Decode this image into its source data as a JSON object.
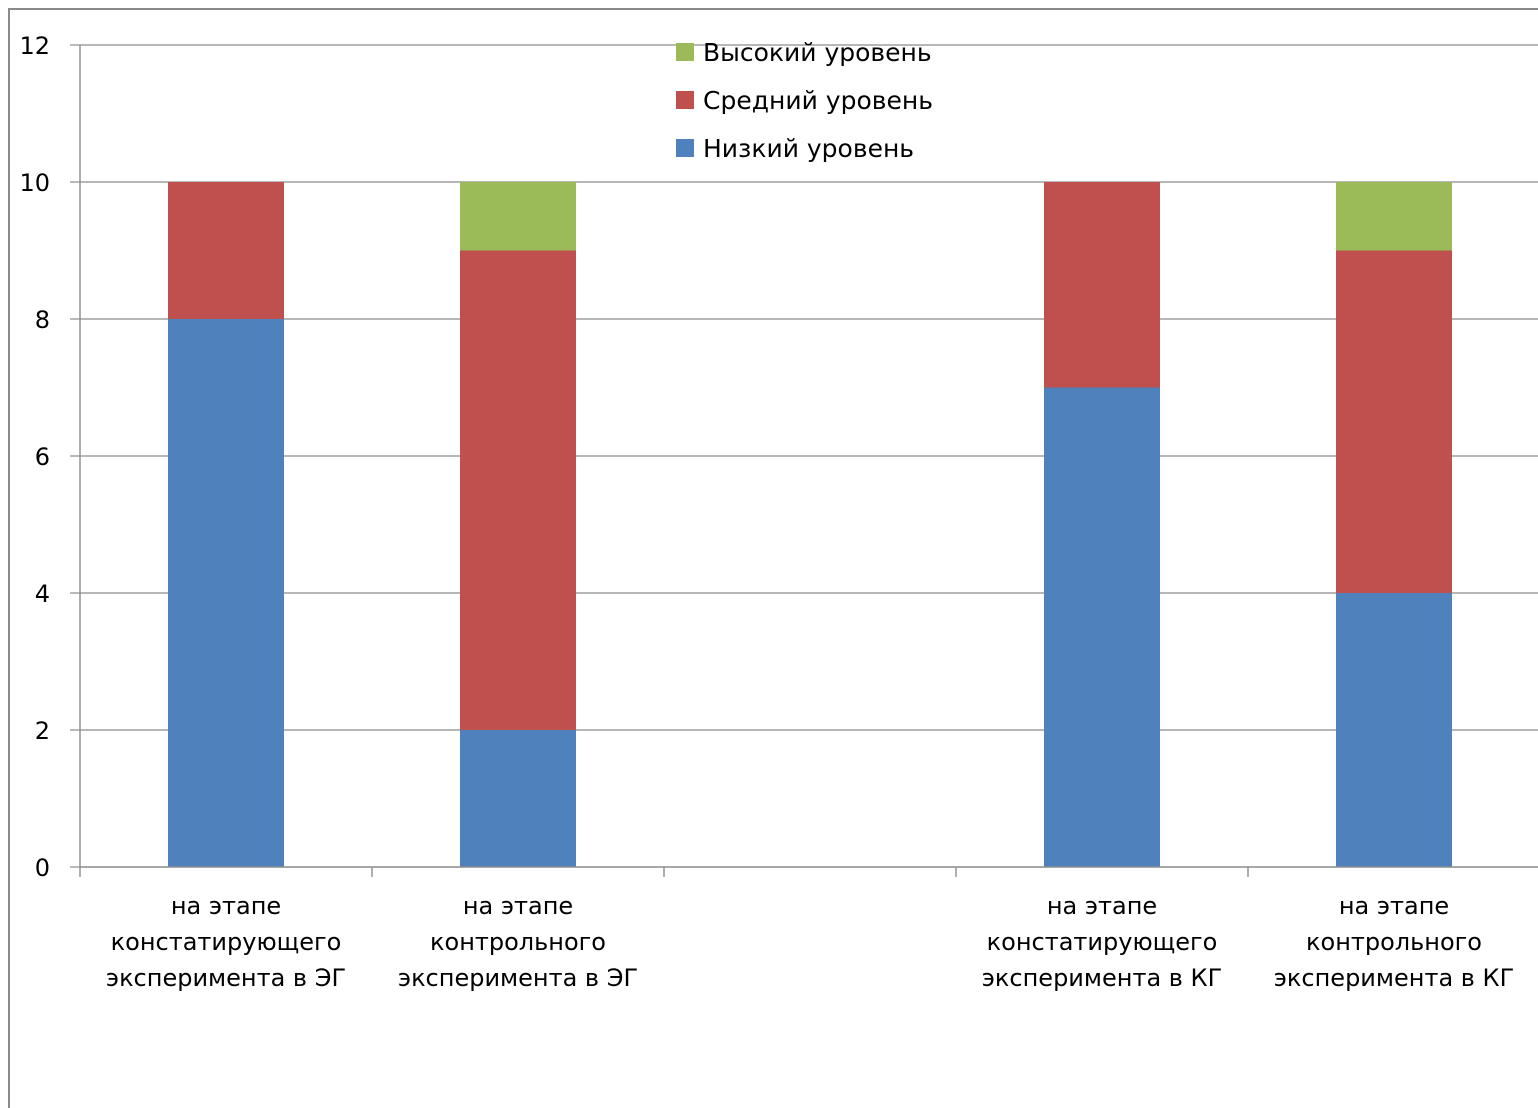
{
  "chart_data": {
    "type": "bar",
    "stacked": true,
    "categories": [
      [
        "на этапе",
        "констатирующего",
        "эксперимента в ЭГ"
      ],
      [
        "на этапе",
        "контрольного",
        "эксперимента в ЭГ"
      ],
      [
        "",
        "",
        ""
      ],
      [
        "на этапе",
        "констатирующего",
        "эксперимента в КГ"
      ],
      [
        "на этапе",
        "контрольного",
        "эксперимента в КГ"
      ]
    ],
    "series": [
      {
        "name": "Низкий уровень",
        "color": "#4f81bd",
        "values": [
          8,
          2,
          null,
          7,
          4
        ]
      },
      {
        "name": "Средний уровень",
        "color": "#c0504d",
        "values": [
          2,
          7,
          null,
          3,
          5
        ]
      },
      {
        "name": "Высокий уровень",
        "color": "#9bbb59",
        "values": [
          0,
          1,
          null,
          0,
          1
        ]
      }
    ],
    "ylim": [
      0,
      12
    ],
    "yticks": [
      0,
      2,
      4,
      6,
      8,
      10,
      12
    ],
    "grid": true,
    "legend": "top-center",
    "legend_order": [
      "Высокий уровень",
      "Средний уровень",
      "Низкий уровень"
    ]
  }
}
